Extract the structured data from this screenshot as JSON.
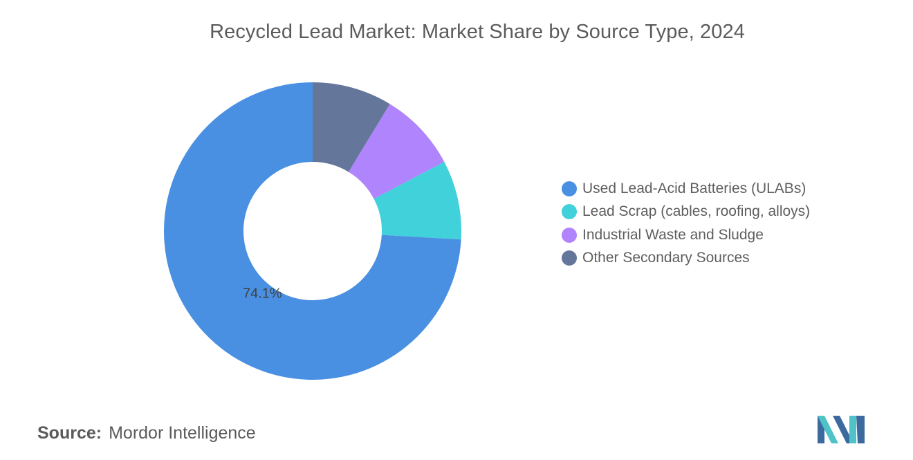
{
  "chart_data": {
    "type": "pie",
    "variant": "donut",
    "title": "Recycled Lead Market: Market Share by Source Type, 2024",
    "categories": [
      "Used Lead-Acid Batteries (ULABs)",
      "Lead Scrap (cables, roofing, alloys)",
      "Industrial Waste and Sludge",
      "Other Secondary Sources"
    ],
    "values": [
      74.1,
      8.6,
      8.6,
      8.7
    ],
    "data_labels": [
      "74.1%",
      "",
      "",
      ""
    ],
    "colors": [
      "#4a90e2",
      "#40d1da",
      "#b084fc",
      "#64779a"
    ],
    "legend_position": "right"
  },
  "source": {
    "key": "Source:",
    "value": "Mordor Intelligence"
  },
  "logo": {
    "icon": "mordor-intelligence-logo-icon",
    "colors": [
      "#3c6a9e",
      "#4fc3c8"
    ]
  }
}
